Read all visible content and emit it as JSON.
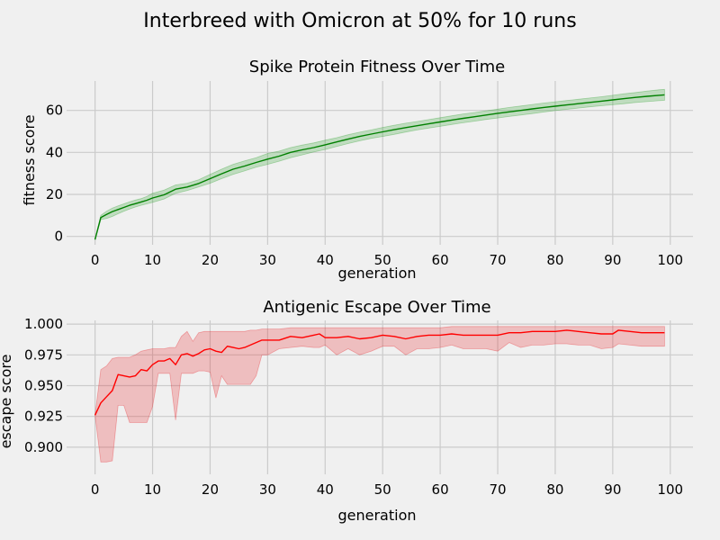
{
  "figure": {
    "suptitle": "Interbreed with Omicron at 50% for 10 runs"
  },
  "chart_data": [
    {
      "type": "line",
      "title": "Spike Protein Fitness Over Time",
      "xlabel": "generation",
      "ylabel": "fitness score",
      "xlim": [
        -4.95,
        103.95
      ],
      "ylim": [
        -4,
        74
      ],
      "xticks": [
        0,
        10,
        20,
        30,
        40,
        50,
        60,
        70,
        80,
        90,
        100
      ],
      "yticks": [
        0,
        20,
        40,
        60
      ],
      "ytick_labels": [
        "0",
        "20",
        "40",
        "60"
      ],
      "grid": true,
      "legend": "none",
      "line_color": "#008000",
      "band_color": "#2ca02c",
      "band_opacity": 0.25,
      "series": [
        {
          "x": [
            0,
            1,
            2,
            3,
            4,
            5,
            6,
            7,
            8,
            9,
            10,
            12,
            14,
            16,
            18,
            20,
            22,
            24,
            26,
            28,
            30,
            32,
            34,
            36,
            38,
            40,
            42,
            44,
            46,
            48,
            50,
            52,
            54,
            56,
            58,
            60,
            62,
            64,
            66,
            68,
            70,
            72,
            74,
            76,
            78,
            80,
            82,
            84,
            86,
            88,
            90,
            92,
            94,
            96,
            98,
            99
          ],
          "mean": [
            -1.5,
            9,
            10.5,
            11.8,
            12.8,
            13.8,
            14.8,
            15.6,
            16.4,
            17.2,
            18.3,
            19.8,
            22.5,
            23.5,
            25.2,
            27.5,
            29.8,
            32.0,
            33.5,
            35.2,
            36.8,
            38.2,
            40.0,
            41.2,
            42.3,
            43.6,
            45.0,
            46.3,
            47.6,
            48.7,
            49.8,
            50.8,
            51.8,
            52.7,
            53.6,
            54.5,
            55.4,
            56.2,
            57.0,
            57.8,
            58.6,
            59.3,
            60.0,
            60.7,
            61.4,
            62.0,
            62.6,
            63.2,
            63.8,
            64.4,
            65.0,
            65.6,
            66.2,
            66.7,
            67.2,
            67.4
          ],
          "lower": [
            -1.5,
            8,
            8.5,
            9.5,
            10.8,
            12.0,
            13.0,
            14.0,
            14.8,
            15.5,
            16.2,
            17.8,
            20.5,
            21.8,
            23.5,
            25.3,
            27.5,
            29.5,
            31.2,
            33.0,
            34.3,
            35.8,
            37.5,
            38.8,
            40.2,
            41.4,
            42.8,
            44.2,
            45.5,
            46.7,
            47.6,
            48.6,
            49.7,
            50.7,
            51.6,
            52.4,
            53.3,
            54.1,
            54.9,
            55.7,
            56.4,
            57.1,
            57.8,
            58.5,
            59.2,
            59.9,
            60.5,
            61.1,
            61.7,
            62.2,
            62.7,
            63.2,
            63.8,
            64.2,
            64.6,
            64.8
          ],
          "upper": [
            -1.5,
            10,
            12.0,
            13.5,
            14.5,
            15.5,
            16.5,
            17.3,
            18.0,
            19.0,
            20.5,
            22.0,
            24.5,
            25.3,
            27.0,
            29.5,
            32.0,
            34.3,
            36.0,
            37.5,
            39.5,
            40.6,
            42.3,
            43.5,
            44.5,
            45.8,
            47.0,
            48.4,
            49.6,
            50.7,
            51.9,
            52.9,
            53.9,
            54.7,
            55.6,
            56.5,
            57.4,
            58.3,
            59.0,
            59.8,
            60.6,
            61.4,
            62.1,
            62.8,
            63.5,
            64.1,
            64.7,
            65.3,
            65.9,
            66.5,
            67.2,
            67.9,
            68.5,
            69.2,
            69.8,
            70.0
          ]
        }
      ]
    },
    {
      "type": "line",
      "title": "Antigenic Escape Over Time",
      "xlabel": "generation",
      "ylabel": "escape score",
      "xlim": [
        -4.95,
        103.95
      ],
      "ylim": [
        0.878,
        1.003
      ],
      "xticks": [
        0,
        10,
        20,
        30,
        40,
        50,
        60,
        70,
        80,
        90,
        100
      ],
      "yticks": [
        0.9,
        0.925,
        0.95,
        0.975,
        1.0
      ],
      "ytick_labels": [
        "0.900",
        "0.925",
        "0.950",
        "0.975",
        "1.000"
      ],
      "grid": true,
      "legend": "none",
      "line_color": "#ff0000",
      "band_color": "#e8262b",
      "band_opacity": 0.25,
      "series": [
        {
          "x": [
            0,
            1,
            2,
            3,
            4,
            5,
            6,
            7,
            8,
            9,
            10,
            11,
            12,
            13,
            14,
            15,
            16,
            17,
            18,
            19,
            20,
            21,
            22,
            23,
            24,
            25,
            26,
            27,
            28,
            29,
            30,
            32,
            34,
            36,
            38,
            39,
            40,
            42,
            44,
            46,
            48,
            50,
            52,
            54,
            56,
            58,
            60,
            62,
            64,
            66,
            68,
            70,
            72,
            74,
            76,
            78,
            80,
            82,
            84,
            86,
            88,
            90,
            91,
            93,
            95,
            97,
            99
          ],
          "mean": [
            0.926,
            0.936,
            0.941,
            0.946,
            0.959,
            0.958,
            0.957,
            0.958,
            0.963,
            0.962,
            0.967,
            0.97,
            0.97,
            0.972,
            0.967,
            0.975,
            0.976,
            0.974,
            0.976,
            0.979,
            0.98,
            0.978,
            0.977,
            0.982,
            0.981,
            0.98,
            0.981,
            0.983,
            0.985,
            0.987,
            0.987,
            0.987,
            0.99,
            0.989,
            0.991,
            0.992,
            0.989,
            0.989,
            0.99,
            0.988,
            0.989,
            0.991,
            0.99,
            0.988,
            0.99,
            0.991,
            0.991,
            0.992,
            0.991,
            0.991,
            0.991,
            0.991,
            0.993,
            0.993,
            0.994,
            0.994,
            0.994,
            0.995,
            0.994,
            0.993,
            0.992,
            0.992,
            0.995,
            0.994,
            0.993,
            0.993,
            0.993
          ],
          "lower": [
            0.926,
            0.888,
            0.888,
            0.889,
            0.934,
            0.934,
            0.92,
            0.92,
            0.92,
            0.92,
            0.933,
            0.96,
            0.96,
            0.96,
            0.922,
            0.96,
            0.96,
            0.96,
            0.962,
            0.962,
            0.961,
            0.94,
            0.958,
            0.951,
            0.951,
            0.951,
            0.951,
            0.951,
            0.958,
            0.975,
            0.975,
            0.98,
            0.981,
            0.982,
            0.981,
            0.981,
            0.983,
            0.975,
            0.98,
            0.975,
            0.978,
            0.982,
            0.982,
            0.975,
            0.98,
            0.98,
            0.981,
            0.983,
            0.98,
            0.98,
            0.98,
            0.978,
            0.985,
            0.981,
            0.983,
            0.983,
            0.984,
            0.984,
            0.983,
            0.983,
            0.98,
            0.981,
            0.984,
            0.983,
            0.982,
            0.982,
            0.982
          ],
          "upper": [
            0.926,
            0.963,
            0.966,
            0.972,
            0.973,
            0.973,
            0.973,
            0.975,
            0.978,
            0.979,
            0.98,
            0.98,
            0.98,
            0.981,
            0.981,
            0.99,
            0.994,
            0.986,
            0.993,
            0.994,
            0.994,
            0.994,
            0.994,
            0.994,
            0.994,
            0.994,
            0.994,
            0.995,
            0.995,
            0.996,
            0.996,
            0.996,
            0.997,
            0.997,
            0.997,
            0.997,
            0.997,
            0.997,
            0.997,
            0.997,
            0.997,
            0.997,
            0.997,
            0.997,
            0.997,
            0.997,
            0.997,
            0.998,
            0.998,
            0.998,
            0.998,
            0.998,
            0.998,
            0.998,
            0.998,
            0.998,
            0.998,
            0.998,
            0.998,
            0.998,
            0.998,
            0.998,
            0.998,
            0.998,
            0.998,
            0.998,
            0.998
          ]
        }
      ]
    }
  ]
}
